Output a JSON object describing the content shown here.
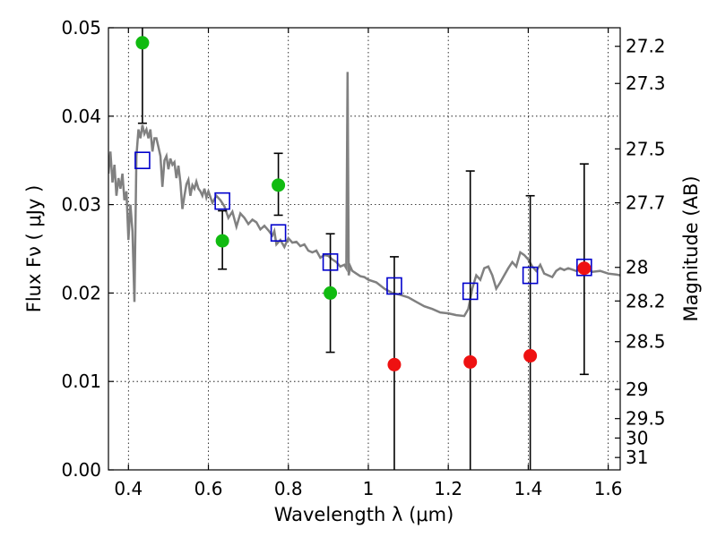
{
  "chart_data": {
    "type": "scatter",
    "xlabel": "Wavelength  λ (μm)",
    "ylabel": "Flux  Fν  ( μJy )",
    "ylabel_right": "Magnitude (AB)",
    "xlim": [
      0.35,
      1.63
    ],
    "ylim": [
      0.0,
      0.05
    ],
    "grid": true,
    "x_ticks": [
      {
        "value": 0.4,
        "label": "0.4"
      },
      {
        "value": 0.6,
        "label": "0.6"
      },
      {
        "value": 0.8,
        "label": "0.8"
      },
      {
        "value": 1.0,
        "label": "1"
      },
      {
        "value": 1.2,
        "label": "1.2"
      },
      {
        "value": 1.4,
        "label": "1.4"
      },
      {
        "value": 1.6,
        "label": "1.6"
      }
    ],
    "y_ticks": [
      {
        "value": 0.0,
        "label": "0.00"
      },
      {
        "value": 0.01,
        "label": "0.01"
      },
      {
        "value": 0.02,
        "label": "0.02"
      },
      {
        "value": 0.03,
        "label": "0.03"
      },
      {
        "value": 0.04,
        "label": "0.04"
      },
      {
        "value": 0.05,
        "label": "0.05"
      }
    ],
    "right_ticks": [
      {
        "label": "27.2",
        "flux": 0.0479
      },
      {
        "label": "27.3",
        "flux": 0.0437
      },
      {
        "label": "27.5",
        "flux": 0.0363
      },
      {
        "label": "27.7",
        "flux": 0.0302
      },
      {
        "label": "28",
        "flux": 0.0229
      },
      {
        "label": "28.2",
        "flux": 0.0191
      },
      {
        "label": "28.5",
        "flux": 0.0145
      },
      {
        "label": "29",
        "flux": 0.0091
      },
      {
        "label": "29.5",
        "flux": 0.0058
      },
      {
        "label": "30",
        "flux": 0.0036
      },
      {
        "label": "31",
        "flux": 0.0014
      }
    ],
    "model_sed": {
      "color": "#808080",
      "points": [
        [
          0.35,
          0.0335
        ],
        [
          0.355,
          0.036
        ],
        [
          0.36,
          0.0325
        ],
        [
          0.365,
          0.0345
        ],
        [
          0.37,
          0.031
        ],
        [
          0.375,
          0.033
        ],
        [
          0.38,
          0.0318
        ],
        [
          0.385,
          0.0335
        ],
        [
          0.39,
          0.0305
        ],
        [
          0.395,
          0.0315
        ],
        [
          0.4,
          0.026
        ],
        [
          0.405,
          0.03
        ],
        [
          0.41,
          0.027
        ],
        [
          0.415,
          0.019
        ],
        [
          0.42,
          0.0355
        ],
        [
          0.425,
          0.0385
        ],
        [
          0.43,
          0.0375
        ],
        [
          0.435,
          0.039
        ],
        [
          0.44,
          0.038
        ],
        [
          0.445,
          0.0385
        ],
        [
          0.45,
          0.0375
        ],
        [
          0.455,
          0.0385
        ],
        [
          0.46,
          0.036
        ],
        [
          0.465,
          0.0375
        ],
        [
          0.47,
          0.0375
        ],
        [
          0.475,
          0.0365
        ],
        [
          0.48,
          0.0355
        ],
        [
          0.485,
          0.032
        ],
        [
          0.49,
          0.035
        ],
        [
          0.495,
          0.0355
        ],
        [
          0.5,
          0.034
        ],
        [
          0.505,
          0.0352
        ],
        [
          0.51,
          0.0345
        ],
        [
          0.515,
          0.0348
        ],
        [
          0.52,
          0.033
        ],
        [
          0.525,
          0.0344
        ],
        [
          0.53,
          0.0325
        ],
        [
          0.535,
          0.0295
        ],
        [
          0.54,
          0.031
        ],
        [
          0.545,
          0.0323
        ],
        [
          0.55,
          0.0328
        ],
        [
          0.555,
          0.031
        ],
        [
          0.56,
          0.0322
        ],
        [
          0.565,
          0.0318
        ],
        [
          0.57,
          0.0326
        ],
        [
          0.575,
          0.0318
        ],
        [
          0.58,
          0.0315
        ],
        [
          0.585,
          0.031
        ],
        [
          0.59,
          0.0318
        ],
        [
          0.595,
          0.0308
        ],
        [
          0.6,
          0.0315
        ],
        [
          0.61,
          0.0302
        ],
        [
          0.62,
          0.031
        ],
        [
          0.63,
          0.0305
        ],
        [
          0.64,
          0.0298
        ],
        [
          0.65,
          0.0285
        ],
        [
          0.66,
          0.0292
        ],
        [
          0.67,
          0.0275
        ],
        [
          0.68,
          0.029
        ],
        [
          0.69,
          0.0285
        ],
        [
          0.7,
          0.0278
        ],
        [
          0.71,
          0.0283
        ],
        [
          0.72,
          0.028
        ],
        [
          0.73,
          0.0272
        ],
        [
          0.74,
          0.0276
        ],
        [
          0.75,
          0.0271
        ],
        [
          0.76,
          0.0265
        ],
        [
          0.765,
          0.027
        ],
        [
          0.77,
          0.0255
        ],
        [
          0.78,
          0.026
        ],
        [
          0.79,
          0.0252
        ],
        [
          0.8,
          0.0262
        ],
        [
          0.81,
          0.0257
        ],
        [
          0.82,
          0.0258
        ],
        [
          0.83,
          0.0253
        ],
        [
          0.84,
          0.0255
        ],
        [
          0.85,
          0.0248
        ],
        [
          0.86,
          0.0246
        ],
        [
          0.87,
          0.0248
        ],
        [
          0.88,
          0.024
        ],
        [
          0.89,
          0.0243
        ],
        [
          0.9,
          0.0242
        ],
        [
          0.91,
          0.0238
        ],
        [
          0.92,
          0.0235
        ],
        [
          0.93,
          0.023
        ],
        [
          0.94,
          0.0232
        ],
        [
          0.945,
          0.0228
        ],
        [
          0.948,
          0.045
        ],
        [
          0.951,
          0.022
        ],
        [
          0.955,
          0.023
        ],
        [
          0.96,
          0.0225
        ],
        [
          0.97,
          0.0222
        ],
        [
          0.98,
          0.0219
        ],
        [
          0.99,
          0.0218
        ],
        [
          1.0,
          0.0215
        ],
        [
          1.02,
          0.0212
        ],
        [
          1.04,
          0.0205
        ],
        [
          1.06,
          0.02
        ],
        [
          1.08,
          0.0198
        ],
        [
          1.1,
          0.0195
        ],
        [
          1.12,
          0.019
        ],
        [
          1.14,
          0.0185
        ],
        [
          1.16,
          0.0182
        ],
        [
          1.18,
          0.0178
        ],
        [
          1.2,
          0.0177
        ],
        [
          1.22,
          0.0175
        ],
        [
          1.24,
          0.0174
        ],
        [
          1.25,
          0.0182
        ],
        [
          1.26,
          0.0205
        ],
        [
          1.27,
          0.022
        ],
        [
          1.28,
          0.0215
        ],
        [
          1.29,
          0.0228
        ],
        [
          1.3,
          0.023
        ],
        [
          1.31,
          0.022
        ],
        [
          1.32,
          0.0205
        ],
        [
          1.33,
          0.0212
        ],
        [
          1.34,
          0.022
        ],
        [
          1.35,
          0.0228
        ],
        [
          1.36,
          0.0235
        ],
        [
          1.37,
          0.023
        ],
        [
          1.38,
          0.0246
        ],
        [
          1.39,
          0.0243
        ],
        [
          1.4,
          0.0238
        ],
        [
          1.41,
          0.023
        ],
        [
          1.42,
          0.0225
        ],
        [
          1.43,
          0.0232
        ],
        [
          1.44,
          0.0222
        ],
        [
          1.45,
          0.022
        ],
        [
          1.46,
          0.0218
        ],
        [
          1.47,
          0.0225
        ],
        [
          1.48,
          0.0228
        ],
        [
          1.49,
          0.0226
        ],
        [
          1.5,
          0.0228
        ],
        [
          1.52,
          0.0225
        ],
        [
          1.54,
          0.0228
        ],
        [
          1.56,
          0.0224
        ],
        [
          1.58,
          0.0225
        ],
        [
          1.6,
          0.0222
        ],
        [
          1.62,
          0.0221
        ],
        [
          1.63,
          0.022
        ]
      ]
    },
    "model_bands": {
      "marker": "open-square",
      "color": "#0000cc",
      "points": [
        {
          "x": 0.435,
          "y": 0.035
        },
        {
          "x": 0.635,
          "y": 0.0304
        },
        {
          "x": 0.775,
          "y": 0.0268
        },
        {
          "x": 0.905,
          "y": 0.0235
        },
        {
          "x": 1.065,
          "y": 0.0208
        },
        {
          "x": 1.255,
          "y": 0.0202
        },
        {
          "x": 1.405,
          "y": 0.022
        },
        {
          "x": 1.54,
          "y": 0.0229
        }
      ]
    },
    "detections": {
      "marker": "filled-circle",
      "color": "#11bb11",
      "points": [
        {
          "x": 0.435,
          "y": 0.0483,
          "err_low": 0.0392,
          "err_high": 0.05
        },
        {
          "x": 0.635,
          "y": 0.0259,
          "err_low": 0.0227,
          "err_high": 0.0293
        },
        {
          "x": 0.775,
          "y": 0.0322,
          "err_low": 0.0288,
          "err_high": 0.0358
        },
        {
          "x": 0.905,
          "y": 0.02,
          "err_low": 0.0133,
          "err_high": 0.0267
        }
      ]
    },
    "non_detections": {
      "marker": "filled-circle",
      "color": "#ee1111",
      "points": [
        {
          "x": 1.065,
          "y": 0.0119,
          "err_low": 0.0,
          "err_high": 0.0241
        },
        {
          "x": 1.255,
          "y": 0.0122,
          "err_low": 0.0,
          "err_high": 0.0338
        },
        {
          "x": 1.405,
          "y": 0.0129,
          "err_low": 0.0,
          "err_high": 0.031
        },
        {
          "x": 1.54,
          "y": 0.0228,
          "err_low": 0.0108,
          "err_high": 0.0346
        }
      ]
    }
  }
}
